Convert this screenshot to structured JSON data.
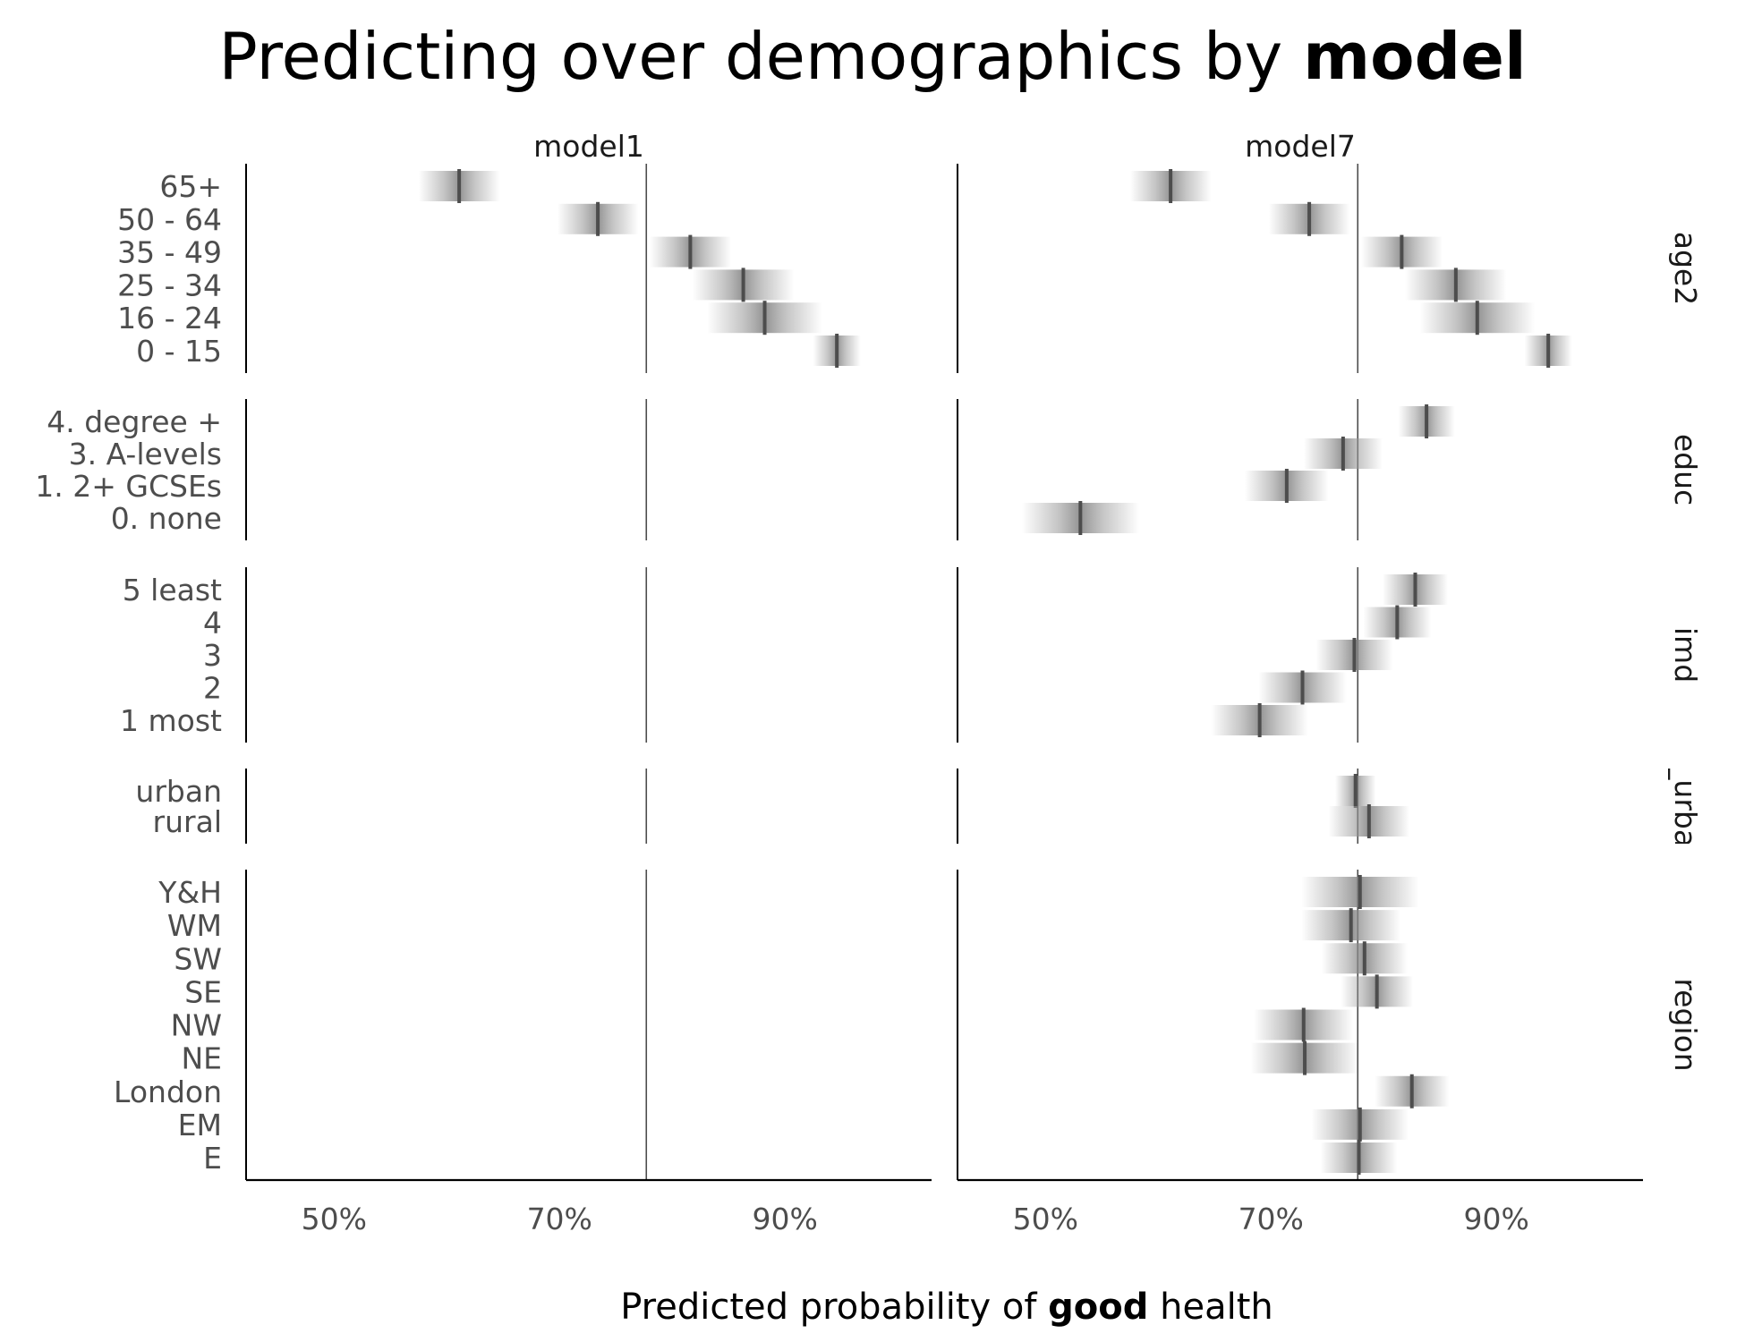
{
  "chart_data": {
    "type": "scatter",
    "title": {
      "prefix": "Predicting over demographics by ",
      "bold": "model"
    },
    "xlabel": {
      "prefix": "Predicted probability of ",
      "bold": "good",
      "suffix": " health"
    },
    "xlim": [
      42.2,
      103.0
    ],
    "x_ticks": [
      50,
      70,
      90
    ],
    "x_tick_labels": [
      "50%",
      "70%",
      "90%"
    ],
    "reference_line": 77.7,
    "grid": false,
    "colors": {
      "point": "#4d4d4d",
      "band": "#9a9a9a",
      "axis": "#000000",
      "refline": "#4d4d4d"
    },
    "panels": [
      {
        "name": "model1",
        "groups": [
          {
            "name": "age2",
            "levels": [
              {
                "label": "65+",
                "value": 61.1,
                "halfwidth": 3.6
              },
              {
                "label": "50 - 64",
                "value": 73.4,
                "halfwidth": 3.6
              },
              {
                "label": "35 - 49",
                "value": 81.6,
                "halfwidth": 3.6
              },
              {
                "label": "25 - 34",
                "value": 86.3,
                "halfwidth": 4.5
              },
              {
                "label": "16 - 24",
                "value": 88.2,
                "halfwidth": 5.1
              },
              {
                "label": "0 - 15",
                "value": 94.6,
                "halfwidth": 2.1
              }
            ]
          },
          {
            "name": "educ",
            "levels": []
          },
          {
            "name": "imd",
            "levels": []
          },
          {
            "name": "_urba",
            "levels": []
          },
          {
            "name": "region",
            "levels": []
          }
        ]
      },
      {
        "name": "model7",
        "groups": [
          {
            "name": "age2",
            "levels": [
              {
                "label": "65+",
                "value": 61.1,
                "halfwidth": 3.6
              },
              {
                "label": "50 - 64",
                "value": 73.4,
                "halfwidth": 3.6
              },
              {
                "label": "35 - 49",
                "value": 81.6,
                "halfwidth": 3.6
              },
              {
                "label": "25 - 34",
                "value": 86.4,
                "halfwidth": 4.5
              },
              {
                "label": "16 - 24",
                "value": 88.3,
                "halfwidth": 5.1
              },
              {
                "label": "0 - 15",
                "value": 94.6,
                "halfwidth": 2.1
              }
            ]
          },
          {
            "name": "educ",
            "levels": [
              {
                "label": "4. degree +",
                "value": 83.8,
                "halfwidth": 2.5
              },
              {
                "label": "3. A-levels",
                "value": 76.4,
                "halfwidth": 3.5
              },
              {
                "label": "1. 2+ GCSEs",
                "value": 71.4,
                "halfwidth": 3.7
              },
              {
                "label": "0. none",
                "value": 53.1,
                "halfwidth": 5.2
              }
            ]
          },
          {
            "name": "imd",
            "levels": [
              {
                "label": "5 least",
                "value": 82.8,
                "halfwidth": 2.9
              },
              {
                "label": "4",
                "value": 81.2,
                "halfwidth": 3.0
              },
              {
                "label": "3",
                "value": 77.4,
                "halfwidth": 3.4
              },
              {
                "label": "2",
                "value": 72.8,
                "halfwidth": 3.9
              },
              {
                "label": "1 most",
                "value": 69.0,
                "halfwidth": 4.3
              }
            ]
          },
          {
            "name": "_urba",
            "levels": [
              {
                "label": "urban",
                "value": 77.5,
                "halfwidth": 1.8
              },
              {
                "label": "rural",
                "value": 78.7,
                "halfwidth": 3.6
              }
            ]
          },
          {
            "name": "region",
            "levels": [
              {
                "label": "Y&H",
                "value": 77.9,
                "halfwidth": 5.2
              },
              {
                "label": "WM",
                "value": 77.1,
                "halfwidth": 4.4
              },
              {
                "label": "SW",
                "value": 78.3,
                "halfwidth": 3.8
              },
              {
                "label": "SE",
                "value": 79.4,
                "halfwidth": 3.2
              },
              {
                "label": "NW",
                "value": 72.9,
                "halfwidth": 4.4
              },
              {
                "label": "NE",
                "value": 73.0,
                "halfwidth": 4.8
              },
              {
                "label": "London",
                "value": 82.5,
                "halfwidth": 3.3
              },
              {
                "label": "EM",
                "value": 77.9,
                "halfwidth": 4.3
              },
              {
                "label": "E",
                "value": 77.8,
                "halfwidth": 3.4
              }
            ]
          }
        ]
      }
    ],
    "row_groups": [
      {
        "name": "age2",
        "labels": [
          "65+",
          "50 - 64",
          "35 - 49",
          "25 - 34",
          "16 - 24",
          "0 - 15"
        ]
      },
      {
        "name": "educ",
        "labels": [
          "4. degree +",
          "3. A-levels",
          "1. 2+ GCSEs",
          "0. none"
        ]
      },
      {
        "name": "imd",
        "labels": [
          "5 least",
          "4",
          "3",
          "2",
          "1 most"
        ]
      },
      {
        "name": "_urba",
        "labels": [
          "urban",
          "rural"
        ]
      },
      {
        "name": "region",
        "labels": [
          "Y&H",
          "WM",
          "SW",
          "SE",
          "NW",
          "NE",
          "London",
          "EM",
          "E"
        ]
      }
    ]
  }
}
